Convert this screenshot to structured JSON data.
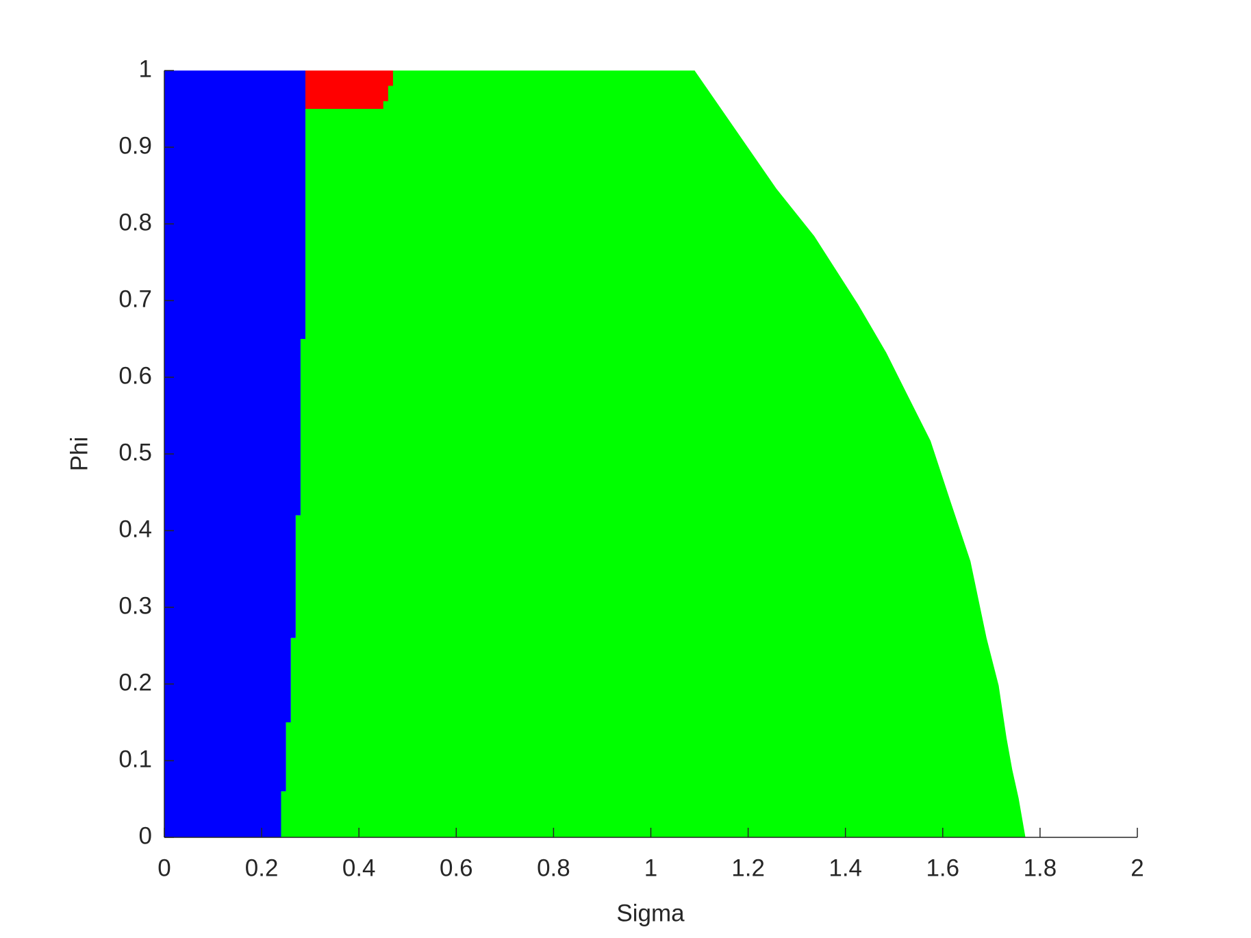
{
  "chart_data": {
    "type": "region",
    "xlabel": "Sigma",
    "ylabel": "Phi",
    "xlim": [
      0,
      2
    ],
    "ylim": [
      0,
      1
    ],
    "xticks": [
      0,
      0.2,
      0.4,
      0.6,
      0.8,
      1,
      1.2,
      1.4,
      1.6,
      1.8,
      2
    ],
    "yticks": [
      0,
      0.1,
      0.2,
      0.3,
      0.4,
      0.5,
      0.6,
      0.7,
      0.8,
      0.9,
      1
    ],
    "series": [
      {
        "color": "#00ff00",
        "x": [
          0.24,
          1.77,
          1.756,
          1.743,
          1.731,
          1.715,
          1.69,
          1.657,
          1.616,
          1.575,
          1.525,
          1.484,
          1.426,
          1.336,
          1.258,
          1.09,
          0.29,
          0.29,
          0.28,
          0.28,
          0.27,
          0.27,
          0.26,
          0.26,
          0.25,
          0.25,
          0.24
        ],
        "y": [
          0,
          0,
          0.051,
          0.088,
          0.13,
          0.198,
          0.26,
          0.36,
          0.438,
          0.517,
          0.58,
          0.632,
          0.695,
          0.784,
          0.846,
          1,
          1,
          0.65,
          0.65,
          0.42,
          0.42,
          0.26,
          0.26,
          0.15,
          0.15,
          0.06,
          0.06
        ]
      },
      {
        "color": "#0000ff",
        "x": [
          0,
          0.24,
          0.24,
          0.25,
          0.25,
          0.26,
          0.26,
          0.27,
          0.27,
          0.28,
          0.28,
          0.29,
          0.29,
          0
        ],
        "y": [
          0,
          0,
          0.06,
          0.06,
          0.15,
          0.15,
          0.26,
          0.26,
          0.42,
          0.42,
          0.65,
          0.65,
          1,
          1
        ]
      },
      {
        "color": "#ff0000",
        "x": [
          0.29,
          0.45,
          0.45,
          0.46,
          0.46,
          0.47,
          0.47,
          0.29
        ],
        "y": [
          0.95,
          0.95,
          0.96,
          0.96,
          0.98,
          0.98,
          1,
          1
        ]
      }
    ]
  }
}
